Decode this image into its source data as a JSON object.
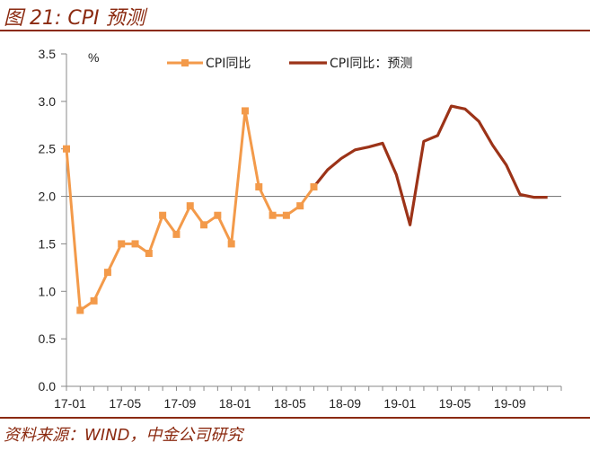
{
  "figure": {
    "title": "图 21: CPI 预测",
    "source": "资料来源：WIND，中金公司研究"
  },
  "chart_data": {
    "type": "line",
    "title": "",
    "xlabel": "",
    "ylabel": "",
    "unit": "%",
    "ylim": [
      0,
      3.5
    ],
    "yticks": [
      "0.0",
      "0.5",
      "1.0",
      "1.5",
      "2.0",
      "2.5",
      "3.0",
      "3.5"
    ],
    "xticks": [
      "17-01",
      "17-05",
      "17-09",
      "18-01",
      "18-05",
      "18-09",
      "19-01",
      "19-05",
      "19-09"
    ],
    "reference_line": 2.0,
    "colors": {
      "actual": "#f39a4a",
      "forecast": "#9c3318",
      "axis": "#888888"
    },
    "legend_position": "top",
    "series": [
      {
        "name": "CPI同比",
        "marker": "square",
        "x": [
          "17-01",
          "17-02",
          "17-03",
          "17-04",
          "17-05",
          "17-06",
          "17-07",
          "17-08",
          "17-09",
          "17-10",
          "17-11",
          "17-12",
          "18-01",
          "18-02",
          "18-03",
          "18-04",
          "18-05",
          "18-06",
          "18-07"
        ],
        "values": [
          2.5,
          0.8,
          0.9,
          1.2,
          1.5,
          1.5,
          1.4,
          1.8,
          1.6,
          1.9,
          1.7,
          1.8,
          1.5,
          2.9,
          2.1,
          1.8,
          1.8,
          1.9,
          2.1
        ]
      },
      {
        "name": "CPI同比：预测",
        "marker": "none",
        "x": [
          "18-07",
          "18-08",
          "18-09",
          "18-10",
          "18-11",
          "18-12",
          "19-01",
          "19-02",
          "19-03",
          "19-04",
          "19-05",
          "19-06",
          "19-07",
          "19-08",
          "19-09",
          "19-10",
          "19-11",
          "19-12"
        ],
        "values": [
          2.1,
          2.28,
          2.4,
          2.49,
          2.52,
          2.56,
          2.23,
          1.7,
          2.58,
          2.64,
          2.95,
          2.92,
          2.79,
          2.54,
          2.33,
          2.02,
          1.99,
          1.99
        ]
      }
    ]
  }
}
